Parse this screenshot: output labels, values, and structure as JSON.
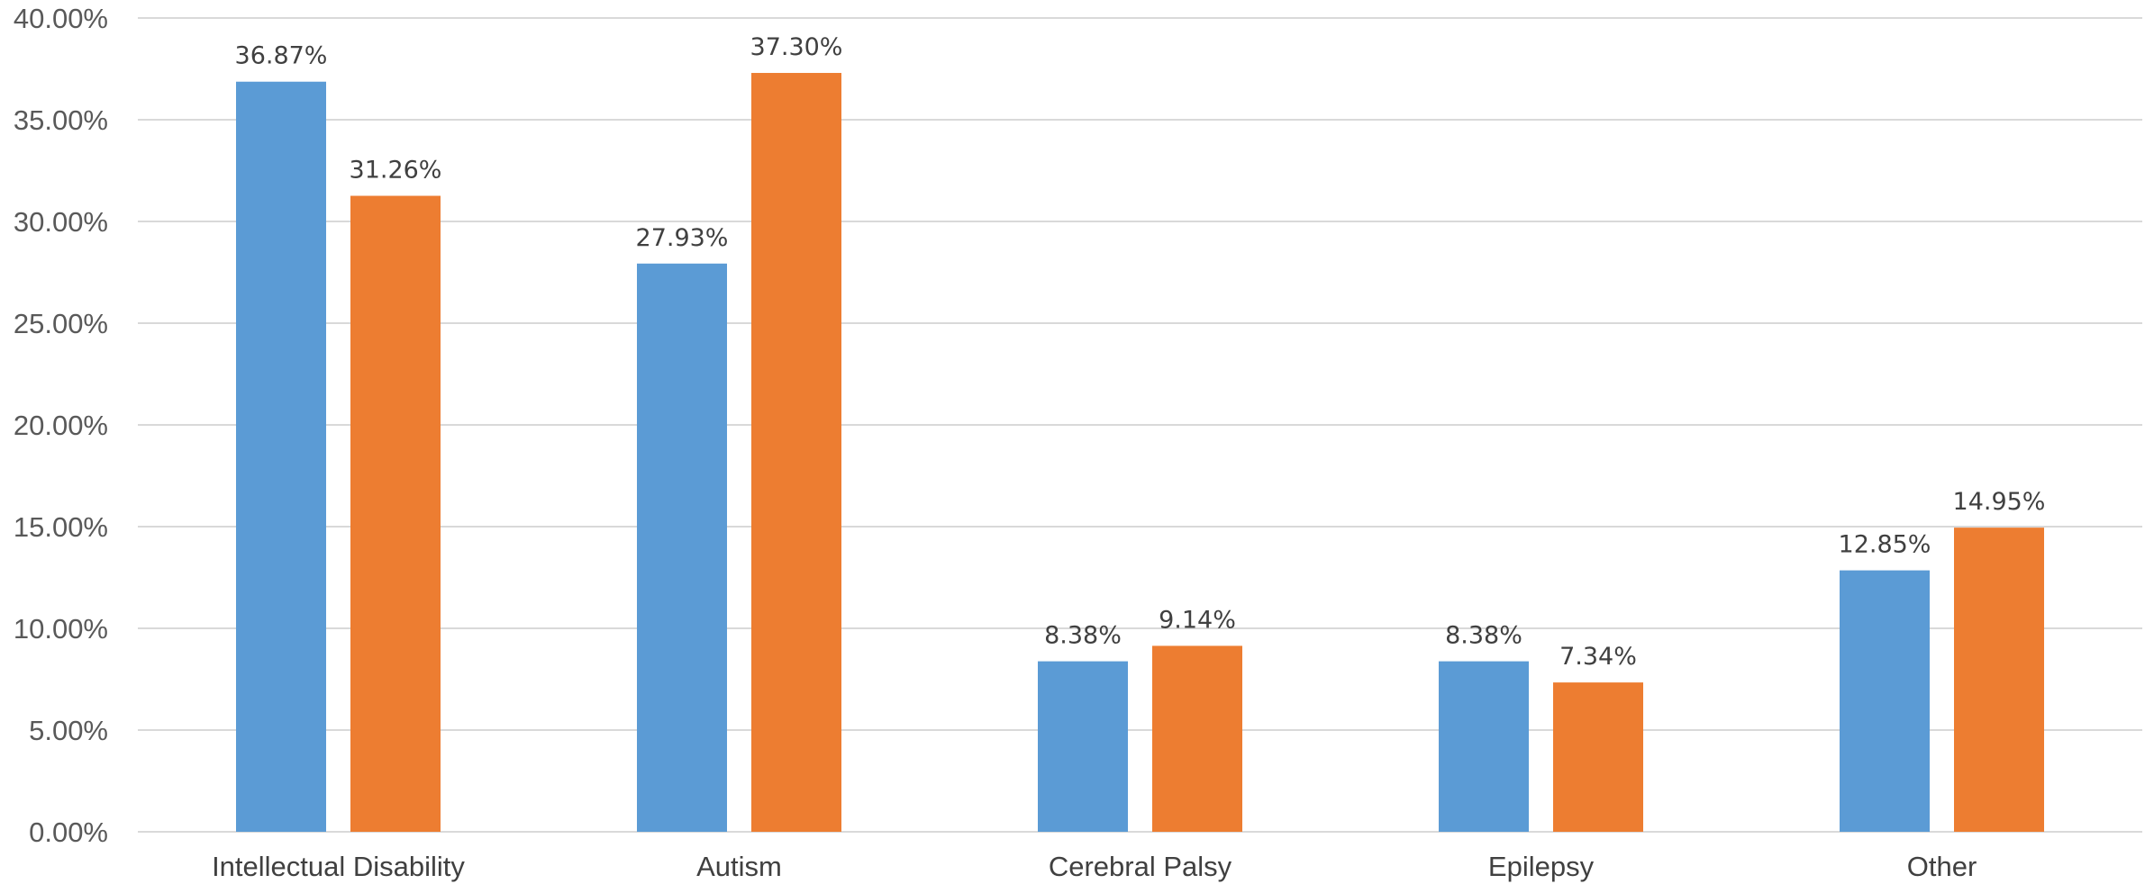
{
  "chart_data": {
    "type": "bar",
    "title": "",
    "xlabel": "",
    "ylabel": "",
    "categories": [
      "Intellectual Disability",
      "Autism",
      "Cerebral Palsy",
      "Epilepsy",
      "Other"
    ],
    "series": [
      {
        "color": "#5b9bd5",
        "values": [
          36.87,
          27.93,
          8.38,
          8.38,
          12.85
        ],
        "labels": [
          "36.87%",
          "27.93%",
          "8.38%",
          "8.38%",
          "12.85%"
        ]
      },
      {
        "color": "#ed7d31",
        "values": [
          31.26,
          37.3,
          9.14,
          7.34,
          14.95
        ],
        "labels": [
          "31.26%",
          "37.30%",
          "9.14%",
          "7.34%",
          "14.95%"
        ]
      }
    ],
    "ylim": [
      0,
      40
    ],
    "yticks": [
      0,
      5,
      10,
      15,
      20,
      25,
      30,
      35,
      40
    ],
    "ytick_labels": [
      "0.00%",
      "5.00%",
      "10.00%",
      "15.00%",
      "20.00%",
      "25.00%",
      "30.00%",
      "35.00%",
      "40.00%"
    ],
    "grid": true,
    "legend": "none"
  }
}
